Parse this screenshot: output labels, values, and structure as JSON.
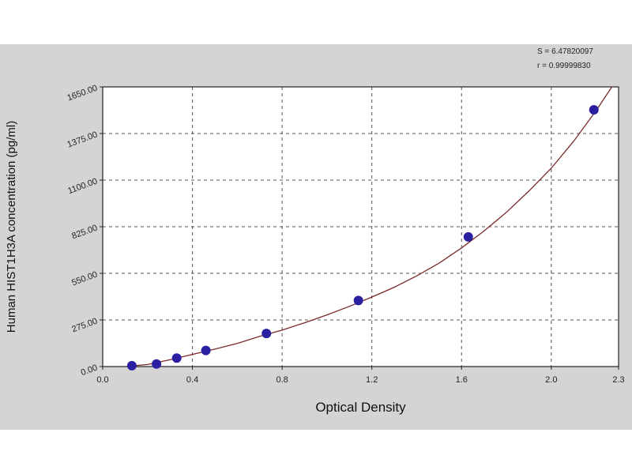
{
  "chart_data": {
    "type": "scatter",
    "xlabel": "Optical Density",
    "ylabel": "Human HIST1H3A concentration (pg/ml)",
    "xlim": [
      0.0,
      2.3
    ],
    "ylim": [
      0,
      1650
    ],
    "xticks": [
      "0.0",
      "0.4",
      "0.8",
      "1.2",
      "1.6",
      "2.0",
      "2.3"
    ],
    "xtick_values": [
      0.0,
      0.4,
      0.8,
      1.2,
      1.6,
      2.0,
      2.3
    ],
    "yticks": [
      "0.00",
      "275.00",
      "550.00",
      "825.00",
      "1100.00",
      "1375.00",
      "1650.00"
    ],
    "ytick_values": [
      0,
      275,
      550,
      825,
      1100,
      1375,
      1650
    ],
    "grid": true,
    "points": {
      "x": [
        0.13,
        0.24,
        0.33,
        0.46,
        0.73,
        1.14,
        1.63,
        2.19
      ],
      "y": [
        5,
        15,
        50,
        95,
        195,
        390,
        765,
        1515
      ]
    },
    "fit_curve": {
      "x": [
        0.1,
        0.2,
        0.3,
        0.4,
        0.5,
        0.6,
        0.7,
        0.8,
        0.9,
        1.0,
        1.1,
        1.2,
        1.3,
        1.4,
        1.5,
        1.6,
        1.7,
        1.8,
        1.9,
        2.0,
        2.1,
        2.2,
        2.27
      ],
      "y": [
        0,
        12,
        40,
        72,
        103,
        136,
        178,
        215,
        258,
        305,
        355,
        410,
        468,
        535,
        610,
        700,
        800,
        910,
        1035,
        1170,
        1330,
        1510,
        1650
      ]
    },
    "stats": {
      "s_line": "S = 6.47820097",
      "r_line": "r = 0.99999830"
    },
    "colors": {
      "panel_bg": "#d4d4d4",
      "plot_bg": "#ffffff",
      "curve": "#7a2a2a",
      "marker": "#2a1fa0",
      "grid": "#555555"
    }
  }
}
